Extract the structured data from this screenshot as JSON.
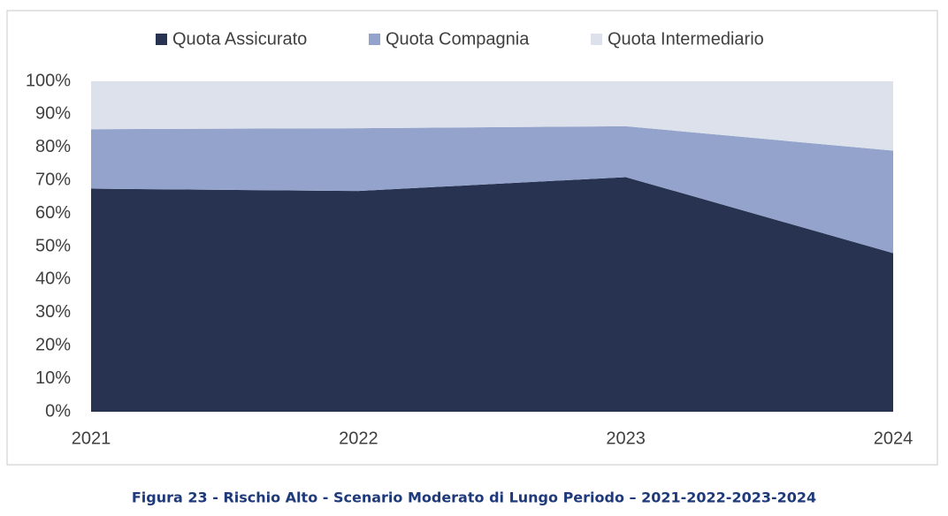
{
  "chart_data": {
    "type": "stacked-area",
    "caption": "Figura 23 - Rischio Alto - Scenario Moderato di Lungo Periodo – 2021-2022-2023-2024",
    "categories": [
      "2021",
      "2022",
      "2023",
      "2024"
    ],
    "series": [
      {
        "name": "Quota Assicurato",
        "color": "#283352",
        "values": [
          67.5,
          66.8,
          71.0,
          48.0
        ]
      },
      {
        "name": "Quota Compagnia",
        "color": "#93a3cc",
        "values": [
          18.0,
          19.0,
          15.4,
          31.0
        ]
      },
      {
        "name": "Quota Intermediario",
        "color": "#dce1ec",
        "values": [
          14.5,
          14.2,
          13.6,
          21.0
        ]
      }
    ],
    "ylim": [
      0,
      100
    ],
    "yticks": [
      {
        "value": 0,
        "label": "0%"
      },
      {
        "value": 10,
        "label": "10%"
      },
      {
        "value": 20,
        "label": "20%"
      },
      {
        "value": 30,
        "label": "30%"
      },
      {
        "value": 40,
        "label": "40%"
      },
      {
        "value": 50,
        "label": "50%"
      },
      {
        "value": 60,
        "label": "60%"
      },
      {
        "value": 70,
        "label": "70%"
      },
      {
        "value": 80,
        "label": "80%"
      },
      {
        "value": 90,
        "label": "90%"
      },
      {
        "value": 100,
        "label": "100%"
      }
    ],
    "legend": "top"
  }
}
